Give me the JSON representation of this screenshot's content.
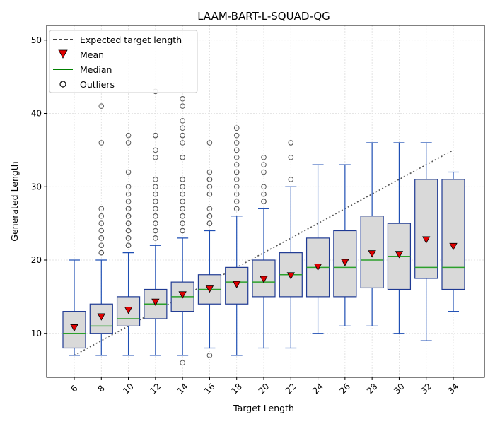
{
  "chart_data": {
    "type": "box",
    "title": "LAAM-BART-L-SQUAD-QG",
    "xlabel": "Target Length",
    "ylabel": "Generated Length",
    "ylim": [
      4,
      52
    ],
    "yticks": [
      10,
      20,
      30,
      40,
      50
    ],
    "grid": true,
    "legend_position": "top-left",
    "legend": {
      "expected": "Expected target length",
      "mean": "Mean",
      "median": "Median",
      "outliers": "Outliers"
    },
    "colors": {
      "box_fill": "#d9d9d9",
      "box_edge": "#1f3a93",
      "whisker": "#1f4fb4",
      "median": "#2ca02c",
      "mean": "#e00000",
      "outlier_edge": "#555555",
      "expected_line": "#555555",
      "grid": "#dddddd"
    },
    "expected_line": {
      "x": [
        6,
        34
      ],
      "y": [
        7,
        35
      ]
    },
    "boxes": [
      {
        "label": "6",
        "x": 6,
        "q1": 8,
        "median": 10,
        "q3": 13,
        "whisker_low": 7,
        "whisker_high": 20,
        "mean": 10.8,
        "outliers": []
      },
      {
        "label": "8",
        "x": 8,
        "q1": 10,
        "median": 11,
        "q3": 14,
        "whisker_low": 7,
        "whisker_high": 20,
        "mean": 12.3,
        "outliers": [
          21,
          21,
          22,
          23,
          23,
          24,
          25,
          26,
          27,
          36,
          41
        ]
      },
      {
        "label": "10",
        "x": 10,
        "q1": 11,
        "median": 12,
        "q3": 15,
        "whisker_low": 7,
        "whisker_high": 21,
        "mean": 13.2,
        "outliers": [
          22,
          22,
          23,
          23,
          24,
          24,
          25,
          25,
          26,
          26,
          27,
          27,
          28,
          29,
          30,
          32,
          36,
          37
        ]
      },
      {
        "label": "12",
        "x": 12,
        "q1": 12,
        "median": 14,
        "q3": 16,
        "whisker_low": 7,
        "whisker_high": 22,
        "mean": 14.3,
        "outliers": [
          23,
          23,
          24,
          24,
          25,
          25,
          26,
          26,
          27,
          27,
          28,
          28,
          29,
          29,
          30,
          30,
          31,
          34,
          35,
          37,
          37,
          43
        ]
      },
      {
        "label": "14",
        "x": 14,
        "q1": 13,
        "median": 15,
        "q3": 17,
        "whisker_low": 7,
        "whisker_high": 23,
        "mean": 15.3,
        "outliers": [
          6,
          24,
          24,
          25,
          25,
          26,
          26,
          27,
          27,
          28,
          28,
          29,
          29,
          30,
          30,
          31,
          31,
          34,
          34,
          36,
          37,
          37,
          38,
          39,
          41,
          42
        ]
      },
      {
        "label": "16",
        "x": 16,
        "q1": 14,
        "median": 16,
        "q3": 18,
        "whisker_low": 8,
        "whisker_high": 24,
        "mean": 16.1,
        "outliers": [
          7,
          25,
          25,
          26,
          26,
          27,
          29,
          29,
          30,
          31,
          31,
          32,
          36
        ]
      },
      {
        "label": "18",
        "x": 18,
        "q1": 14,
        "median": 17,
        "q3": 19,
        "whisker_low": 7,
        "whisker_high": 26,
        "mean": 16.7,
        "outliers": [
          27,
          27,
          28,
          29,
          30,
          31,
          32,
          32,
          33,
          34,
          35,
          36,
          37,
          38
        ]
      },
      {
        "label": "20",
        "x": 20,
        "q1": 15,
        "median": 17,
        "q3": 20,
        "whisker_low": 8,
        "whisker_high": 27,
        "mean": 17.4,
        "outliers": [
          28,
          28,
          29,
          29,
          30,
          32,
          33,
          34
        ]
      },
      {
        "label": "22",
        "x": 22,
        "q1": 15,
        "median": 18,
        "q3": 21,
        "whisker_low": 8,
        "whisker_high": 30,
        "mean": 17.9,
        "outliers": [
          31,
          34,
          36,
          36
        ]
      },
      {
        "label": "24",
        "x": 24,
        "q1": 15,
        "median": 19,
        "q3": 23,
        "whisker_low": 10,
        "whisker_high": 33,
        "mean": 19.1,
        "outliers": []
      },
      {
        "label": "26",
        "x": 26,
        "q1": 15,
        "median": 19,
        "q3": 24,
        "whisker_low": 11,
        "whisker_high": 33,
        "mean": 19.7,
        "outliers": []
      },
      {
        "label": "28",
        "x": 28,
        "q1": 16.2,
        "median": 20,
        "q3": 26,
        "whisker_low": 11,
        "whisker_high": 36,
        "mean": 20.9,
        "outliers": []
      },
      {
        "label": "30",
        "x": 30,
        "q1": 16,
        "median": 20.5,
        "q3": 25,
        "whisker_low": 10,
        "whisker_high": 36,
        "mean": 20.8,
        "outliers": []
      },
      {
        "label": "32",
        "x": 32,
        "q1": 17.5,
        "median": 19,
        "q3": 31,
        "whisker_low": 9,
        "whisker_high": 36,
        "mean": 22.8,
        "outliers": []
      },
      {
        "label": "34",
        "x": 34,
        "q1": 16,
        "median": 19,
        "q3": 31,
        "whisker_low": 13,
        "whisker_high": 32,
        "mean": 21.9,
        "outliers": []
      }
    ]
  }
}
